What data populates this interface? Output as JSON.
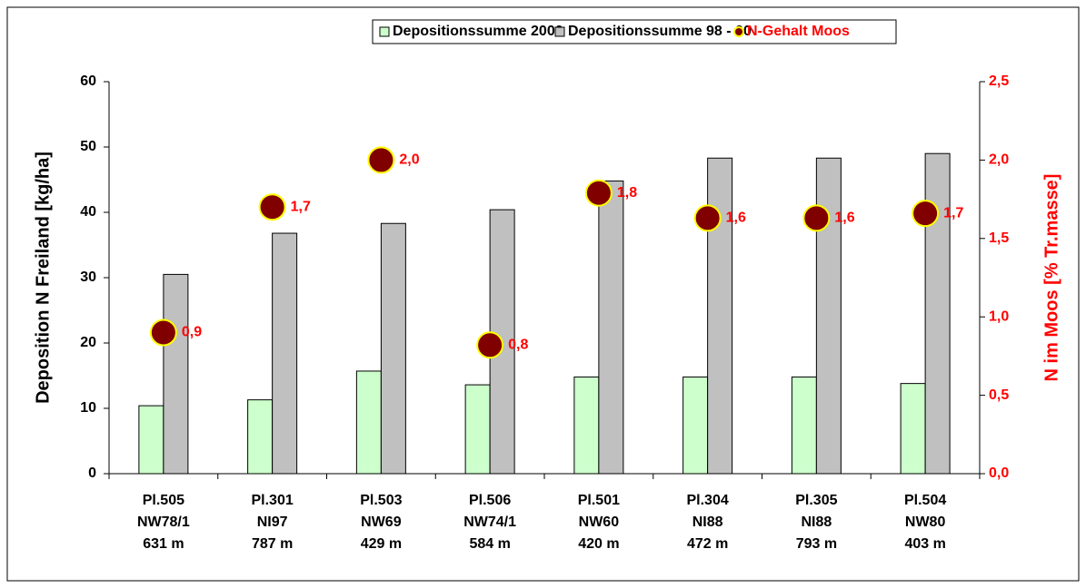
{
  "chart_data": {
    "type": "bar",
    "categories": [
      [
        "Pl.505",
        "NW78/1",
        "631 m"
      ],
      [
        "Pl.301",
        "NI97",
        "787 m"
      ],
      [
        "Pl.503",
        "NW69",
        "429 m"
      ],
      [
        "Pl.506",
        "NW74/1",
        "584 m"
      ],
      [
        "Pl.501",
        "NW60",
        "420 m"
      ],
      [
        "Pl.304",
        "NI88",
        "472 m"
      ],
      [
        "Pl.305",
        "NI88",
        "793 m"
      ],
      [
        "Pl.504",
        "NW80",
        "403 m"
      ]
    ],
    "series": [
      {
        "name": "Depositionssumme 2000",
        "type": "bar",
        "color": "#ccffcc",
        "values": [
          10.4,
          11.3,
          15.7,
          13.6,
          14.8,
          14.8,
          14.8,
          13.8
        ]
      },
      {
        "name": "Depositionssumme 98 - 00",
        "type": "bar",
        "color": "#c0c0c0",
        "values": [
          30.5,
          36.8,
          38.3,
          40.4,
          44.8,
          48.3,
          48.3,
          49.0
        ]
      },
      {
        "name": "N-Gehalt Moos",
        "type": "scatter",
        "axis": "y2",
        "color": "#800000",
        "edge_color": "#ffff00",
        "values": [
          0.9,
          1.7,
          2.0,
          0.82,
          1.79,
          1.63,
          1.63,
          1.66
        ],
        "value_labels": [
          "0,9",
          "1,7",
          "2,0",
          "0,8",
          "1,8",
          "1,6",
          "1,6",
          "1,7"
        ]
      }
    ],
    "ylabel": "Deposition N Freiland [kg/ha]",
    "y2label": "N im Moos [% Tr.masse]",
    "ylim": [
      0,
      60
    ],
    "yticks": [
      0,
      10,
      20,
      30,
      40,
      50,
      60
    ],
    "y2lim": [
      0,
      2.5
    ],
    "y2ticks": [
      {
        "value": 0,
        "label": "0,0"
      },
      {
        "value": 0.5,
        "label": "0,5"
      },
      {
        "value": 1,
        "label": "1,0"
      },
      {
        "value": 1.5,
        "label": "1,5"
      },
      {
        "value": 2,
        "label": "2,0"
      },
      {
        "value": 2.5,
        "label": "2,5"
      }
    ],
    "grid": false,
    "legend": "top"
  }
}
